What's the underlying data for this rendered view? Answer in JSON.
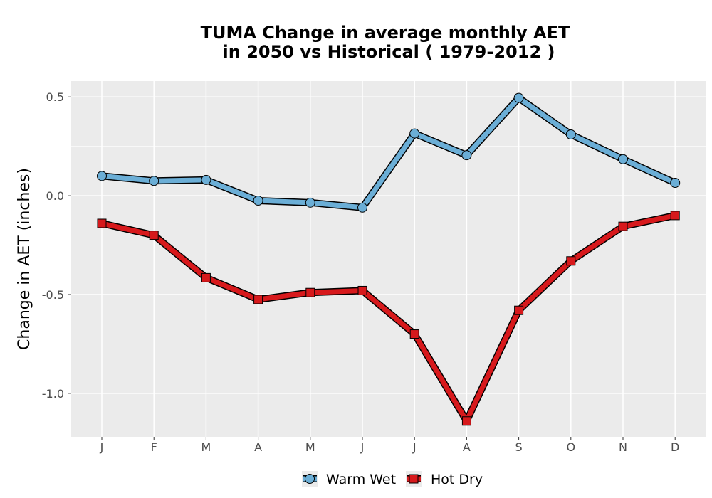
{
  "chart_data": {
    "type": "line",
    "title": {
      "line1": "TUMA  Change in average monthly AET",
      "line2": "in 2050 vs Historical ( 1979-2012 )"
    },
    "xlabel": "",
    "ylabel": "Change in AET (inches)",
    "categories": [
      "J",
      "F",
      "M",
      "A",
      "M",
      "J",
      "J",
      "A",
      "S",
      "O",
      "N",
      "D"
    ],
    "ylim": [
      -1.22,
      0.58
    ],
    "yticks": [
      0.5,
      0.0,
      -0.5,
      -1.0
    ],
    "ytick_labels": [
      "0.5",
      "0.0",
      "-0.5",
      "-1.0"
    ],
    "grid": true,
    "legend_position": "bottom",
    "series": [
      {
        "name": "Warm Wet",
        "color": "#6baed6",
        "marker": "circle",
        "values": [
          0.1,
          0.075,
          0.08,
          -0.025,
          -0.035,
          -0.06,
          0.315,
          0.205,
          0.495,
          0.31,
          0.185,
          0.065
        ]
      },
      {
        "name": "Hot Dry",
        "color": "#d7191c",
        "marker": "square",
        "values": [
          -0.14,
          -0.2,
          -0.415,
          -0.525,
          -0.49,
          -0.48,
          -0.7,
          -1.14,
          -0.58,
          -0.33,
          -0.155,
          -0.1
        ]
      }
    ]
  }
}
